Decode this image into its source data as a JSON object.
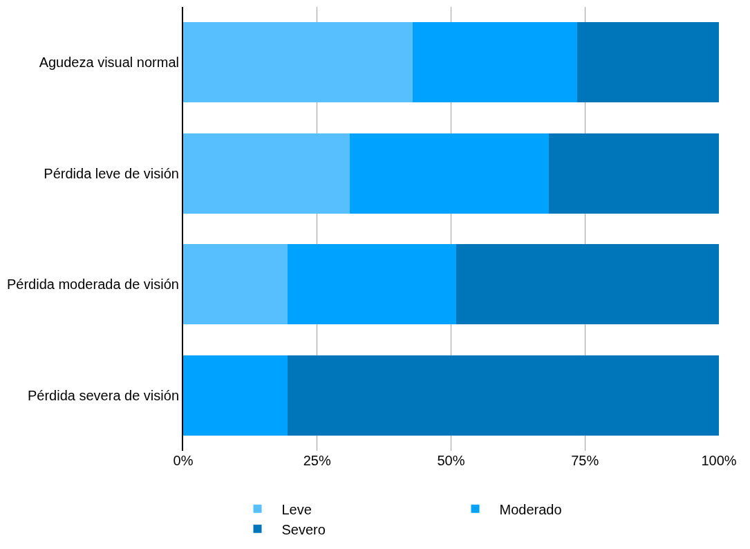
{
  "chart_data": {
    "type": "bar",
    "orientation": "horizontal",
    "stacked": true,
    "categories": [
      "Agudeza visual normal",
      "Pérdida leve de visión",
      "Pérdida moderada de visión",
      "Pérdida severa de visión"
    ],
    "series": [
      {
        "name": "Leve",
        "color": "#58bfff",
        "values": [
          42.8,
          31.1,
          19.5,
          0
        ]
      },
      {
        "name": "Moderado",
        "color": "#00a2ff",
        "values": [
          30.8,
          37.2,
          31.5,
          19.5
        ]
      },
      {
        "name": "Severo",
        "color": "#0076ba",
        "values": [
          26.4,
          31.7,
          49.0,
          80.5
        ]
      }
    ],
    "xlim": [
      0,
      100
    ],
    "xticks": [
      {
        "value": 0,
        "label": "0%"
      },
      {
        "value": 25,
        "label": "25%"
      },
      {
        "value": 50,
        "label": "50%"
      },
      {
        "value": 75,
        "label": "75%"
      },
      {
        "value": 100,
        "label": "100%"
      }
    ],
    "grid": "x",
    "legend": "bottom"
  }
}
